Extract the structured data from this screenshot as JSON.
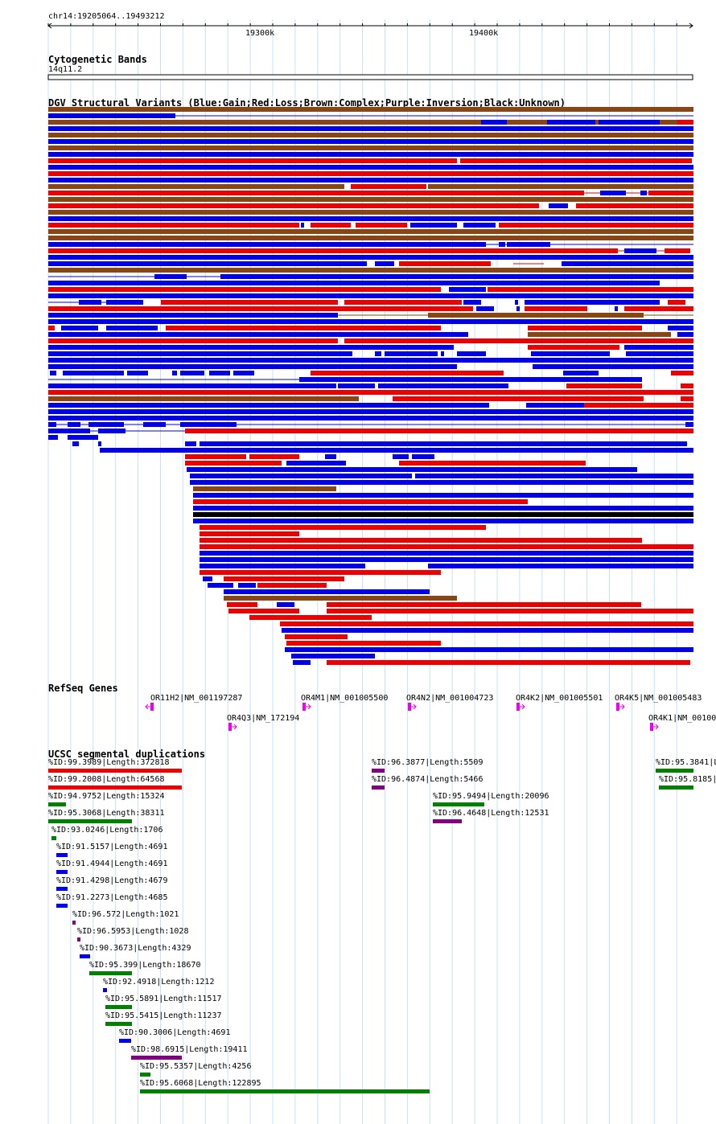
{
  "locus": "chr14:19205064..19493212",
  "ruler": {
    "ticks": [
      {
        "label": "19300k",
        "bp": 19300000
      },
      {
        "label": "19400k",
        "bp": 19400000
      }
    ]
  },
  "tracks": {
    "cytoband": {
      "title": "Cytogenetic Bands",
      "band": "14q11.2"
    },
    "dgv": {
      "title": "DGV Structural Variants (Blue:Gain;Red:Loss;Brown:Complex;Purple:Inversion;Black:Unknown)",
      "colors": {
        "gain": "#0000ee",
        "loss": "#ee0000",
        "complex": "#8b4513",
        "inversion": "#800080",
        "unknown": "#000000"
      }
    },
    "refseq": {
      "title": "RefSeq Genes",
      "color": "#ee00ee",
      "genes": [
        {
          "label": "OR11H2|NM_001197287",
          "strand": "-"
        },
        {
          "label": "OR4M1|NM_001005500",
          "strand": "+"
        },
        {
          "label": "OR4N2|NM_001004723",
          "strand": "+"
        },
        {
          "label": "OR4K2|NM_001005501",
          "strand": "+"
        },
        {
          "label": "OR4K5|NM_001005483",
          "strand": "+"
        },
        {
          "label": "OR4Q3|NM_172194",
          "strand": "+"
        },
        {
          "label": "OR4K1|NM_00100",
          "strand": "+"
        }
      ]
    },
    "segdup": {
      "title": "UCSC segmental duplications",
      "colors": {
        "red": "#ee0000",
        "green": "#008000",
        "blue": "#0000ee",
        "purple": "#800080"
      },
      "items": [
        {
          "label": "%ID:99.3989|Length:372818",
          "color": "red"
        },
        {
          "label": "%ID:99.2008|Length:64568",
          "color": "red"
        },
        {
          "label": "%ID:94.9752|Length:15324",
          "color": "green"
        },
        {
          "label": "%ID:95.3068|Length:38311",
          "color": "green"
        },
        {
          "label": "%ID:93.0246|Length:1706",
          "color": "green"
        },
        {
          "label": "%ID:91.5157|Length:4691",
          "color": "blue"
        },
        {
          "label": "%ID:91.4944|Length:4691",
          "color": "blue"
        },
        {
          "label": "%ID:91.4298|Length:4679",
          "color": "blue"
        },
        {
          "label": "%ID:91.2273|Length:4685",
          "color": "blue"
        },
        {
          "label": "%ID:96.572|Length:1021",
          "color": "purple"
        },
        {
          "label": "%ID:96.5953|Length:1028",
          "color": "purple"
        },
        {
          "label": "%ID:90.3673|Length:4329",
          "color": "blue"
        },
        {
          "label": "%ID:95.399|Length:18670",
          "color": "green"
        },
        {
          "label": "%ID:92.4918|Length:1212",
          "color": "blue"
        },
        {
          "label": "%ID:95.5891|Length:11517",
          "color": "green"
        },
        {
          "label": "%ID:95.5415|Length:11237",
          "color": "green"
        },
        {
          "label": "%ID:90.3006|Length:4691",
          "color": "blue"
        },
        {
          "label": "%ID:98.6915|Length:19411",
          "color": "purple"
        },
        {
          "label": "%ID:95.5357|Length:4256",
          "color": "green"
        },
        {
          "label": "%ID:95.6068|Length:122895",
          "color": "green"
        },
        {
          "label": "%ID:96.3877|Length:5509",
          "color": "purple"
        },
        {
          "label": "%ID:96.4874|Length:5466",
          "color": "purple"
        },
        {
          "label": "%ID:95.9494|Length:20096",
          "color": "green"
        },
        {
          "label": "%ID:96.4648|Length:12531",
          "color": "purple"
        },
        {
          "label": "%ID:95.3841|L",
          "color": "green"
        },
        {
          "label": "%ID:95.8185|",
          "color": "green"
        }
      ]
    }
  }
}
